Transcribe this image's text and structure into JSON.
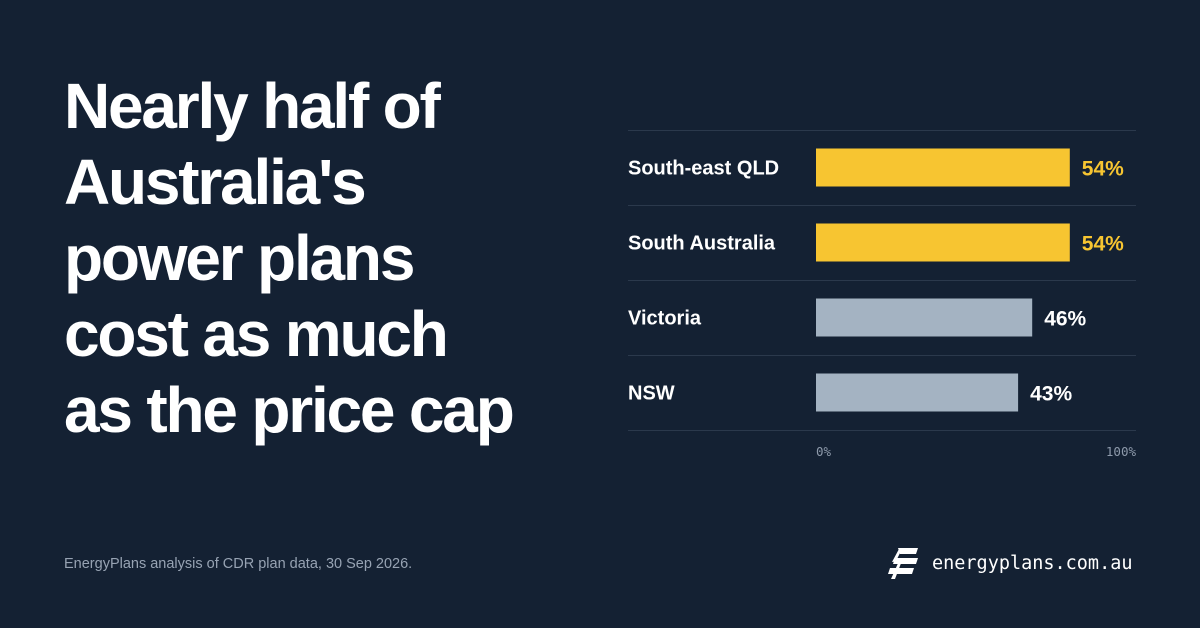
{
  "headline": {
    "lines": [
      "Nearly half of",
      "Australia's",
      "power plans",
      "cost as much",
      "as the price cap"
    ]
  },
  "chart_data": {
    "type": "bar",
    "orientation": "horizontal",
    "categories": [
      "South-east QLD",
      "South Australia",
      "Victoria",
      "NSW"
    ],
    "values": [
      54,
      54,
      46,
      43
    ],
    "value_labels": [
      "54%",
      "54%",
      "46%",
      "43%"
    ],
    "xlim": [
      0,
      100
    ],
    "tick_labels": [
      "0%",
      "100%"
    ],
    "colors": [
      "#F7C531",
      "#F7C531",
      "#A4B3C2",
      "#A4B3C2"
    ],
    "grid": true,
    "legend": "none"
  },
  "footer": {
    "source": "EnergyPlans analysis of CDR plan data, 30 Sep 2026.",
    "brand_icon": "energyplans-logo-icon",
    "brand": "energyplans.com.au"
  },
  "colors": {
    "background": "#142133",
    "highlight": "#F7C531",
    "muted": "#A4B3C2",
    "text": "#FFFFFF"
  }
}
